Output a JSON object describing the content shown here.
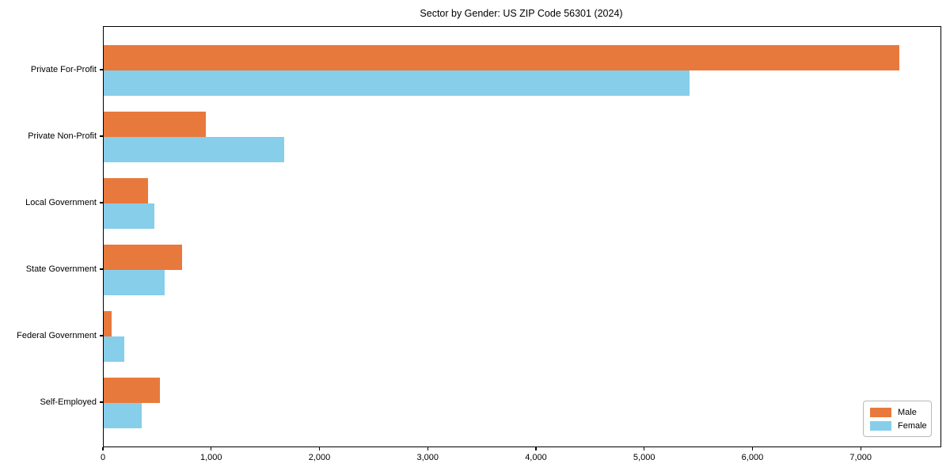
{
  "chart_data": {
    "type": "bar",
    "orientation": "horizontal",
    "title": "Sector by Gender: US ZIP Code 56301 (2024)",
    "categories": [
      "Private For-Profit",
      "Private Non-Profit",
      "Local Government",
      "State Government",
      "Federal Government",
      "Self-Employed"
    ],
    "series": [
      {
        "name": "Male",
        "color": "#E8793C",
        "values": [
          7350,
          940,
          410,
          725,
          75,
          520
        ]
      },
      {
        "name": "Female",
        "color": "#87CEEB",
        "values": [
          5410,
          1670,
          465,
          560,
          190,
          350
        ]
      }
    ],
    "xlabel": "",
    "ylabel": "",
    "xlim": [
      0,
      7730
    ],
    "x_ticks": [
      0,
      1000,
      2000,
      3000,
      4000,
      5000,
      6000,
      7000
    ],
    "x_tick_labels": [
      "0",
      "1,000",
      "2,000",
      "3,000",
      "4,000",
      "5,000",
      "6,000",
      "7,000"
    ],
    "grid": false,
    "legend": {
      "position": "lower right"
    },
    "spine_color": "#000000",
    "background_color": "#ffffff"
  }
}
